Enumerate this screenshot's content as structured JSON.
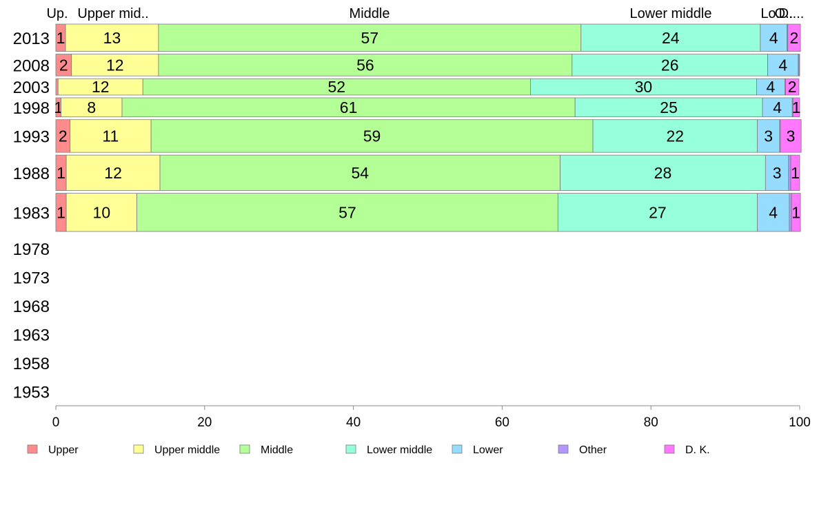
{
  "chart_data": {
    "type": "bar",
    "orientation": "horizontal",
    "stacked": true,
    "xlim": [
      0,
      100
    ],
    "x_ticks": [
      "0",
      "20",
      "40",
      "60",
      "80",
      "100"
    ],
    "categories": [
      "2013",
      "2008",
      "2003",
      "1998",
      "1993",
      "1988",
      "1983",
      "1978",
      "1973",
      "1968",
      "1963",
      "1958",
      "1953"
    ],
    "column_labels": [
      "Up.",
      "Upper mid..",
      "Middle",
      "Lower middle",
      "Lo..",
      "O..",
      "D...."
    ],
    "series": [
      {
        "name": "Upper",
        "color": "#ff8c8c",
        "values": [
          1.3,
          2.1,
          0.3,
          0.7,
          1.9,
          1.4,
          1.4,
          null,
          null,
          null,
          null,
          null,
          null
        ]
      },
      {
        "name": "Upper middle",
        "color": "#ffff96",
        "values": [
          12.5,
          11.7,
          11.4,
          8.2,
          10.9,
          12.6,
          9.5,
          null,
          null,
          null,
          null,
          null,
          null
        ]
      },
      {
        "name": "Middle",
        "color": "#b4ff96",
        "values": [
          56.8,
          55.6,
          52.1,
          60.9,
          59.4,
          53.8,
          56.6,
          null,
          null,
          null,
          null,
          null,
          null
        ]
      },
      {
        "name": "Lower middle",
        "color": "#96ffdc",
        "values": [
          24.1,
          26.3,
          30.4,
          25.2,
          22.1,
          27.6,
          26.8,
          null,
          null,
          null,
          null,
          null,
          null
        ]
      },
      {
        "name": "Lower",
        "color": "#96dcff",
        "values": [
          3.6,
          4.1,
          3.8,
          4.0,
          3.0,
          3.1,
          4.3,
          null,
          null,
          null,
          null,
          null,
          null
        ]
      },
      {
        "name": "Other",
        "color": "#b496ff",
        "values": [
          0.1,
          0.1,
          0.1,
          0.1,
          0.1,
          0.3,
          0.3,
          null,
          null,
          null,
          null,
          null,
          null
        ]
      },
      {
        "name": "D. K.",
        "color": "#ff78ff",
        "values": [
          1.7,
          0.1,
          1.8,
          0.9,
          2.8,
          1.2,
          1.2,
          null,
          null,
          null,
          null,
          null,
          null
        ]
      }
    ],
    "data_labels": [
      [
        "1",
        "13",
        "57",
        "24",
        "4",
        "",
        "2"
      ],
      [
        "2",
        "12",
        "56",
        "26",
        "4",
        "",
        ""
      ],
      [
        "",
        "12",
        "52",
        "30",
        "4",
        "",
        "2"
      ],
      [
        "1",
        "8",
        "61",
        "25",
        "4",
        "",
        "1"
      ],
      [
        "2",
        "11",
        "59",
        "22",
        "3",
        "",
        "3"
      ],
      [
        "1",
        "12",
        "54",
        "28",
        "3",
        "",
        "1"
      ],
      [
        "1",
        "10",
        "57",
        "27",
        "4",
        "",
        "1"
      ],
      [],
      [],
      [],
      [],
      [],
      []
    ],
    "bar_weights": [
      1,
      0.8,
      0.6,
      0.7,
      1.2,
      1.3,
      1.4,
      0,
      0,
      0,
      0,
      0,
      0
    ],
    "legend": [
      "Upper",
      "Upper middle",
      "Middle",
      "Lower middle",
      "Lower",
      "Other",
      "D. K."
    ],
    "legend_position": "bottom",
    "grid": false
  }
}
